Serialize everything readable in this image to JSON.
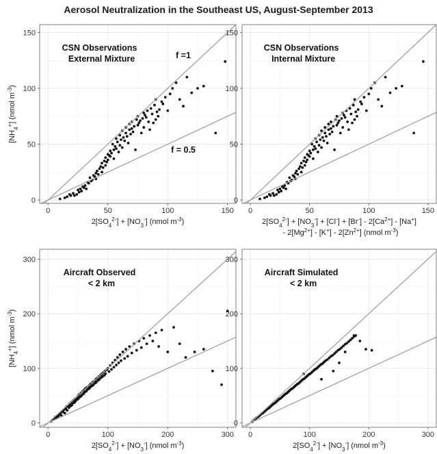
{
  "title": "Aerosol Neutralization in the Southeast US, August-September 2013",
  "chart_data": [
    {
      "type": "scatter",
      "panel_labels": [
        "CSN Observations",
        "External Mixture"
      ],
      "ylabel": "[NH4+] (nmol m-3)",
      "xlabel": "2[SO42-] + [NO3-] (nmol m-3)",
      "xticks": [
        0,
        50,
        100,
        150
      ],
      "yticks": [
        0,
        50,
        100,
        150
      ],
      "xlim": [
        -7,
        157
      ],
      "ylim": [
        -3,
        157
      ],
      "reference_lines": [
        {
          "slope": 1,
          "label": "f =1"
        },
        {
          "slope": 0.5,
          "label": "f = 0.5"
        }
      ],
      "grid": true,
      "x": [
        10,
        14,
        16,
        18,
        19,
        21,
        22,
        24,
        25,
        26,
        27,
        28,
        29,
        30,
        31,
        32,
        33,
        34,
        35,
        36,
        37,
        38,
        39,
        40,
        40,
        41,
        42,
        43,
        44,
        45,
        45,
        46,
        47,
        48,
        48,
        49,
        50,
        50,
        51,
        52,
        52,
        53,
        54,
        55,
        55,
        56,
        57,
        57,
        58,
        59,
        60,
        60,
        61,
        62,
        62,
        63,
        64,
        65,
        65,
        66,
        67,
        68,
        68,
        69,
        70,
        70,
        71,
        72,
        73,
        74,
        75,
        75,
        76,
        77,
        78,
        79,
        80,
        80,
        81,
        82,
        83,
        84,
        85,
        86,
        87,
        88,
        89,
        90,
        90,
        91,
        92,
        93,
        95,
        96,
        98,
        100,
        102,
        104,
        107,
        110,
        113,
        116,
        120,
        125,
        130,
        140,
        148
      ],
      "y": [
        1,
        2,
        3,
        5,
        4,
        6,
        4,
        5,
        9,
        7,
        10,
        8,
        12,
        11,
        13,
        10,
        16,
        15,
        20,
        17,
        18,
        22,
        21,
        24,
        19,
        26,
        23,
        28,
        30,
        25,
        33,
        29,
        35,
        31,
        38,
        34,
        41,
        36,
        40,
        39,
        44,
        42,
        50,
        45,
        37,
        48,
        46,
        55,
        52,
        43,
        58,
        49,
        54,
        47,
        62,
        56,
        53,
        60,
        65,
        57,
        51,
        63,
        68,
        59,
        70,
        64,
        61,
        66,
        45,
        72,
        67,
        75,
        69,
        71,
        60,
        73,
        78,
        65,
        76,
        74,
        80,
        70,
        63,
        82,
        77,
        69,
        85,
        72,
        90,
        79,
        75,
        81,
        88,
        86,
        92,
        80,
        95,
        100,
        105,
        90,
        84,
        110,
        96,
        100,
        102,
        60,
        124
      ]
    },
    {
      "type": "scatter",
      "panel_labels": [
        "CSN Observations",
        "Internal Mixture"
      ],
      "xlabel_line1": "2[SO42-] + [NO3-] + [Cl-] + [Br-] - 2[Ca2+] - [Na+]",
      "xlabel_line2": "- 2[Mg2+] - [K+] - 2[Zn2+] (nmol m-3)",
      "xticks": [
        0,
        50,
        100,
        150
      ],
      "yticks": [
        0,
        50,
        100,
        150
      ],
      "xlim": [
        -7,
        157
      ],
      "ylim": [
        -3,
        157
      ],
      "reference_lines": [
        {
          "slope": 1
        },
        {
          "slope": 0.5
        }
      ],
      "grid": true,
      "x": [
        8,
        12,
        14,
        16,
        17,
        19,
        20,
        22,
        23,
        24,
        25,
        26,
        27,
        28,
        29,
        30,
        31,
        32,
        33,
        34,
        35,
        36,
        37,
        38,
        38,
        39,
        40,
        41,
        42,
        43,
        43,
        44,
        45,
        46,
        46,
        47,
        48,
        48,
        49,
        50,
        50,
        51,
        52,
        53,
        53,
        54,
        55,
        55,
        56,
        57,
        58,
        58,
        59,
        60,
        60,
        61,
        62,
        63,
        63,
        64,
        65,
        66,
        66,
        67,
        68,
        68,
        69,
        70,
        71,
        72,
        73,
        73,
        74,
        75,
        76,
        77,
        78,
        78,
        79,
        80,
        81,
        82,
        83,
        84,
        85,
        86,
        87,
        88,
        88,
        89,
        90,
        91,
        93,
        94,
        96,
        98,
        100,
        102,
        105,
        108,
        111,
        114,
        118,
        123,
        128,
        138,
        146
      ],
      "y": [
        1,
        2,
        3,
        5,
        4,
        6,
        4,
        5,
        9,
        7,
        10,
        8,
        12,
        11,
        13,
        10,
        16,
        15,
        20,
        17,
        18,
        22,
        21,
        24,
        19,
        26,
        23,
        28,
        30,
        25,
        33,
        29,
        35,
        31,
        38,
        34,
        41,
        36,
        40,
        39,
        44,
        42,
        50,
        45,
        37,
        48,
        46,
        55,
        52,
        43,
        58,
        49,
        54,
        47,
        62,
        56,
        53,
        60,
        65,
        57,
        51,
        63,
        68,
        59,
        70,
        64,
        61,
        66,
        45,
        72,
        67,
        75,
        69,
        71,
        60,
        73,
        78,
        65,
        76,
        74,
        80,
        70,
        63,
        82,
        77,
        69,
        85,
        72,
        90,
        79,
        75,
        81,
        88,
        86,
        92,
        80,
        95,
        100,
        105,
        90,
        84,
        110,
        96,
        100,
        102,
        60,
        124
      ]
    },
    {
      "type": "scatter",
      "panel_labels": [
        "Aircraft Observed",
        "< 2 km"
      ],
      "ylabel": "[NH4+] (nmol m-3)",
      "xlabel": "2[SO42-] + [NO3-] (nmol m-3)",
      "xticks": [
        0,
        100,
        200,
        300
      ],
      "yticks": [
        0,
        100,
        200,
        300
      ],
      "xlim": [
        -14,
        314
      ],
      "ylim": [
        -8,
        318
      ],
      "reference_lines": [
        {
          "slope": 1
        },
        {
          "slope": 0.5
        }
      ],
      "grid": true,
      "x": [
        5,
        8,
        10,
        12,
        14,
        15,
        17,
        18,
        20,
        21,
        22,
        24,
        25,
        26,
        28,
        29,
        30,
        31,
        32,
        34,
        35,
        36,
        38,
        39,
        40,
        41,
        42,
        44,
        45,
        46,
        48,
        49,
        50,
        51,
        52,
        54,
        55,
        56,
        58,
        59,
        60,
        61,
        62,
        64,
        65,
        66,
        68,
        69,
        70,
        71,
        72,
        74,
        75,
        76,
        78,
        79,
        80,
        81,
        82,
        84,
        85,
        86,
        88,
        89,
        90,
        91,
        92,
        94,
        95,
        96,
        98,
        100,
        102,
        104,
        106,
        108,
        110,
        112,
        114,
        116,
        118,
        120,
        122,
        125,
        128,
        130,
        133,
        136,
        140,
        144,
        148,
        152,
        156,
        160,
        165,
        170,
        175,
        180,
        185,
        190,
        200,
        210,
        220,
        230,
        245,
        260,
        275,
        290,
        300
      ],
      "y": [
        3,
        6,
        8,
        11,
        9,
        13,
        12,
        16,
        15,
        19,
        14,
        22,
        20,
        24,
        18,
        27,
        25,
        30,
        23,
        32,
        28,
        35,
        31,
        38,
        33,
        36,
        41,
        37,
        44,
        40,
        46,
        43,
        49,
        45,
        52,
        48,
        55,
        50,
        58,
        53,
        60,
        56,
        63,
        58,
        65,
        61,
        67,
        63,
        70,
        66,
        72,
        68,
        75,
        70,
        77,
        73,
        80,
        75,
        82,
        78,
        85,
        80,
        88,
        83,
        90,
        85,
        92,
        87,
        95,
        90,
        97,
        100,
        94,
        105,
        98,
        110,
        102,
        115,
        106,
        120,
        110,
        125,
        114,
        130,
        118,
        135,
        122,
        140,
        128,
        145,
        133,
        150,
        138,
        155,
        145,
        160,
        150,
        165,
        140,
        170,
        130,
        175,
        145,
        120,
        130,
        135,
        95,
        70,
        205
      ]
    },
    {
      "type": "scatter",
      "panel_labels": [
        "Aircraft Simulated",
        "< 2 km"
      ],
      "xlabel": "2[SO42-] + [NO3-] (nmol m-3)",
      "xticks": [
        0,
        100,
        200,
        300
      ],
      "yticks": [
        0,
        100,
        200,
        300
      ],
      "xlim": [
        -14,
        314
      ],
      "ylim": [
        -8,
        318
      ],
      "reference_lines": [
        {
          "slope": 1
        },
        {
          "slope": 0.5
        }
      ],
      "grid": true,
      "x": [
        3,
        5,
        7,
        9,
        11,
        13,
        15,
        17,
        19,
        21,
        23,
        25,
        27,
        29,
        31,
        33,
        35,
        37,
        39,
        41,
        43,
        45,
        47,
        49,
        51,
        53,
        55,
        57,
        59,
        61,
        63,
        65,
        67,
        69,
        71,
        73,
        75,
        77,
        79,
        81,
        83,
        85,
        87,
        89,
        91,
        93,
        95,
        97,
        99,
        101,
        103,
        105,
        107,
        109,
        111,
        113,
        115,
        117,
        119,
        121,
        123,
        125,
        127,
        130,
        133,
        136,
        139,
        142,
        145,
        148,
        151,
        154,
        157,
        160,
        163,
        166,
        169,
        172,
        175,
        178,
        90,
        120,
        140,
        150,
        160,
        175,
        185,
        195,
        205
      ],
      "y": [
        2,
        4,
        6,
        8,
        10,
        11,
        13,
        15,
        17,
        18,
        20,
        22,
        24,
        26,
        27,
        29,
        31,
        33,
        35,
        36,
        38,
        40,
        42,
        44,
        45,
        47,
        49,
        51,
        53,
        54,
        56,
        58,
        60,
        62,
        63,
        65,
        67,
        69,
        71,
        72,
        74,
        76,
        78,
        80,
        81,
        83,
        85,
        87,
        89,
        90,
        92,
        94,
        96,
        98,
        99,
        101,
        103,
        105,
        107,
        108,
        110,
        112,
        114,
        116,
        119,
        122,
        124,
        127,
        130,
        133,
        135,
        138,
        141,
        144,
        146,
        149,
        152,
        155,
        158,
        160,
        90,
        80,
        95,
        110,
        130,
        160,
        150,
        135,
        133
      ]
    }
  ]
}
